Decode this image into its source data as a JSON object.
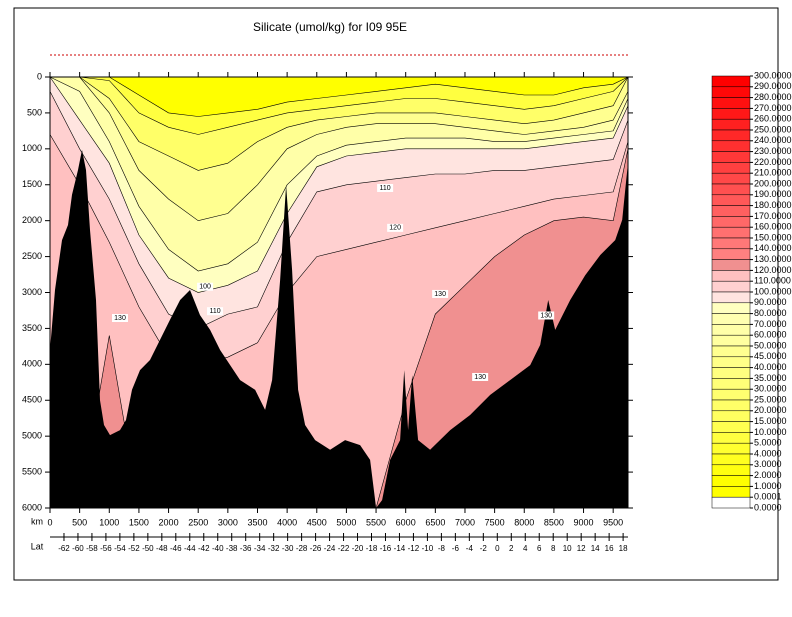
{
  "chart_data": {
    "type": "contour-section",
    "title": "Silicate (umol/kg) for I09 95E",
    "xlabel": "km",
    "x2label": "Lat",
    "xlim": [
      0,
      9750
    ],
    "xticks": [
      0,
      500,
      1000,
      1500,
      2000,
      2500,
      3000,
      3500,
      4000,
      4500,
      5000,
      5500,
      6000,
      6500,
      7000,
      7500,
      8000,
      8500,
      9000,
      9500
    ],
    "ylim": [
      0,
      6000
    ],
    "yticks": [
      0,
      500,
      1000,
      1500,
      2000,
      2500,
      3000,
      3500,
      4000,
      4500,
      5000,
      5500,
      6000
    ],
    "x2lim": [
      -64,
      18.7
    ],
    "x2ticks": [
      -62,
      -60,
      -58,
      -56,
      -54,
      -52,
      -50,
      -48,
      -46,
      -44,
      -42,
      -40,
      -38,
      -36,
      -34,
      -32,
      -30,
      -28,
      -26,
      -24,
      -22,
      -20,
      -18,
      -16,
      -14,
      -12,
      -10,
      -8,
      -6,
      -4,
      -2,
      0,
      2,
      4,
      6,
      8,
      10,
      12,
      14,
      16,
      18
    ],
    "surface_color": "#ffff00",
    "contour_x": [
      0,
      500,
      1000,
      1500,
      2000,
      2500,
      3000,
      3500,
      4000,
      4500,
      5000,
      5500,
      6000,
      6500,
      7000,
      7500,
      8000,
      8500,
      9000,
      9500,
      9750
    ],
    "isolines": [
      {
        "level": 5,
        "color": "#ffff40",
        "depth": [
          0,
          0,
          0,
          250,
          500,
          550,
          500,
          450,
          350,
          300,
          250,
          200,
          150,
          100,
          150,
          200,
          250,
          250,
          150,
          100,
          0
        ]
      },
      {
        "level": 20,
        "color": "#ffff68",
        "depth": [
          0,
          0,
          50,
          500,
          700,
          800,
          700,
          600,
          500,
          450,
          400,
          350,
          300,
          300,
          350,
          400,
          450,
          400,
          300,
          200,
          0
        ]
      },
      {
        "level": 50,
        "color": "#ffff90",
        "depth": [
          0,
          0,
          300,
          900,
          1100,
          1300,
          1200,
          900,
          700,
          600,
          550,
          500,
          500,
          500,
          550,
          600,
          650,
          600,
          500,
          400,
          0
        ]
      },
      {
        "level": 70,
        "color": "#ffffa8",
        "depth": [
          0,
          0,
          500,
          1300,
          1700,
          2000,
          1900,
          1500,
          1000,
          800,
          700,
          650,
          650,
          650,
          700,
          750,
          800,
          750,
          700,
          600,
          200
        ]
      },
      {
        "level": 90,
        "color": "#ffffc0",
        "depth": [
          0,
          200,
          900,
          1800,
          2400,
          2700,
          2600,
          2300,
          1500,
          1100,
          950,
          900,
          850,
          850,
          850,
          900,
          900,
          850,
          800,
          750,
          300
        ]
      },
      {
        "level": 100,
        "color": "#ffe4e0",
        "depth": [
          0,
          600,
          1200,
          2200,
          2800,
          3000,
          2900,
          2700,
          1900,
          1250,
          1100,
          1050,
          1000,
          1000,
          1000,
          1000,
          1000,
          950,
          900,
          850,
          400
        ]
      },
      {
        "level": 110,
        "color": "#ffd0d0",
        "depth": [
          200,
          1000,
          1700,
          2600,
          3300,
          3500,
          3300,
          3200,
          2300,
          1600,
          1500,
          1450,
          1400,
          1350,
          1350,
          1300,
          1300,
          1250,
          1200,
          1150,
          600
        ]
      },
      {
        "level": 120,
        "color": "#ffc0c0",
        "depth": [
          800,
          1500,
          2300,
          3200,
          3900,
          4000,
          3900,
          3700,
          3000,
          2500,
          2400,
          2300,
          2200,
          2100,
          2000,
          1900,
          1800,
          1700,
          1650,
          1600,
          900
        ]
      },
      {
        "level": 130,
        "color": "#f09090",
        "depth": [
          6000,
          6000,
          3600,
          6000,
          6000,
          6000,
          6000,
          6000,
          6000,
          6000,
          6000,
          6000,
          4500,
          3300,
          2900,
          2500,
          2200,
          2000,
          1950,
          2000,
          1000
        ]
      }
    ],
    "bottom": {
      "color": "#000000",
      "x": [
        0,
        84,
        202,
        304,
        371,
        472,
        540,
        607,
        675,
        776,
        843,
        911,
        1012,
        1181,
        1282,
        1384,
        1519,
        1687,
        1856,
        2025,
        2194,
        2362,
        2531,
        2700,
        2869,
        3206,
        3459,
        3628,
        3746,
        3881,
        3982,
        4084,
        4185,
        4303,
        4472,
        4725,
        4978,
        5231,
        5400,
        5501,
        5602,
        5737,
        5906,
        5974,
        6041,
        6109,
        6210,
        6412,
        6750,
        7087,
        7425,
        7762,
        8100,
        8269,
        8404,
        8522,
        8775,
        9028,
        9281,
        9534,
        9652,
        9720,
        9750
      ],
      "depth": [
        3800,
        2965,
        2270,
        2060,
        1640,
        1295,
        1015,
        1295,
        2130,
        3105,
        4500,
        4845,
        4985,
        4915,
        4775,
        4355,
        4080,
        3940,
        3660,
        3380,
        3105,
        2965,
        3315,
        3520,
        3800,
        4220,
        4355,
        4635,
        4220,
        2830,
        1505,
        2690,
        4355,
        4845,
        5055,
        5190,
        5055,
        5125,
        5330,
        6000,
        5890,
        5330,
        5055,
        4080,
        4915,
        4150,
        5055,
        5190,
        4915,
        4705,
        4425,
        4220,
        4010,
        3730,
        3105,
        3520,
        3105,
        2760,
        2480,
        2270,
        1990,
        1435,
        1200
      ]
    },
    "annotations": [
      {
        "text": "130",
        "x": 6581,
        "y": 3020
      },
      {
        "text": "130",
        "x": 8370,
        "y": 3320
      },
      {
        "text": "120",
        "x": 5822,
        "y": 2100
      },
      {
        "text": "110",
        "x": 5653,
        "y": 1545
      },
      {
        "text": "100",
        "x": 2616,
        "y": 2920
      },
      {
        "text": "110",
        "x": 2784,
        "y": 3260
      },
      {
        "text": "130",
        "x": 1181,
        "y": 3355
      },
      {
        "text": "130",
        "x": 7256,
        "y": 4176
      }
    ],
    "colorbar": {
      "labels": [
        "300.0000",
        "290.0000",
        "280.0000",
        "270.0000",
        "260.0000",
        "250.0000",
        "240.0000",
        "230.0000",
        "220.0000",
        "210.0000",
        "200.0000",
        "190.0000",
        "180.0000",
        "170.0000",
        "160.0000",
        "150.0000",
        "140.0000",
        "130.0000",
        "120.0000",
        "110.0000",
        "100.0000",
        "90.0000",
        "80.0000",
        "70.0000",
        "60.0000",
        "50.0000",
        "45.0000",
        "40.0000",
        "35.0000",
        "30.0000",
        "25.0000",
        "20.0000",
        "15.0000",
        "10.0000",
        "5.0000",
        "4.0000",
        "3.0000",
        "2.0000",
        "1.0000",
        "0.0001",
        "0.0000"
      ],
      "colors": [
        "#ff0000",
        "#ff0808",
        "#ff1010",
        "#ff1818",
        "#ff2020",
        "#ff2828",
        "#ff3030",
        "#ff3838",
        "#ff4040",
        "#ff4848",
        "#ff5050",
        "#ff5858",
        "#ff6060",
        "#ff6868",
        "#ff7070",
        "#ff7878",
        "#ff8080",
        "#f09090",
        "#ffc0c0",
        "#ffd0d0",
        "#ffe4e0",
        "#ffffc0",
        "#ffffb0",
        "#ffffa8",
        "#ffffa0",
        "#ffff90",
        "#ffff88",
        "#ffff80",
        "#ffff78",
        "#ffff70",
        "#ffff68",
        "#ffff60",
        "#ffff50",
        "#ffff40",
        "#ffff30",
        "#ffff20",
        "#ffff10",
        "#ffff00",
        "#ffff00",
        "#ffffff"
      ]
    }
  }
}
